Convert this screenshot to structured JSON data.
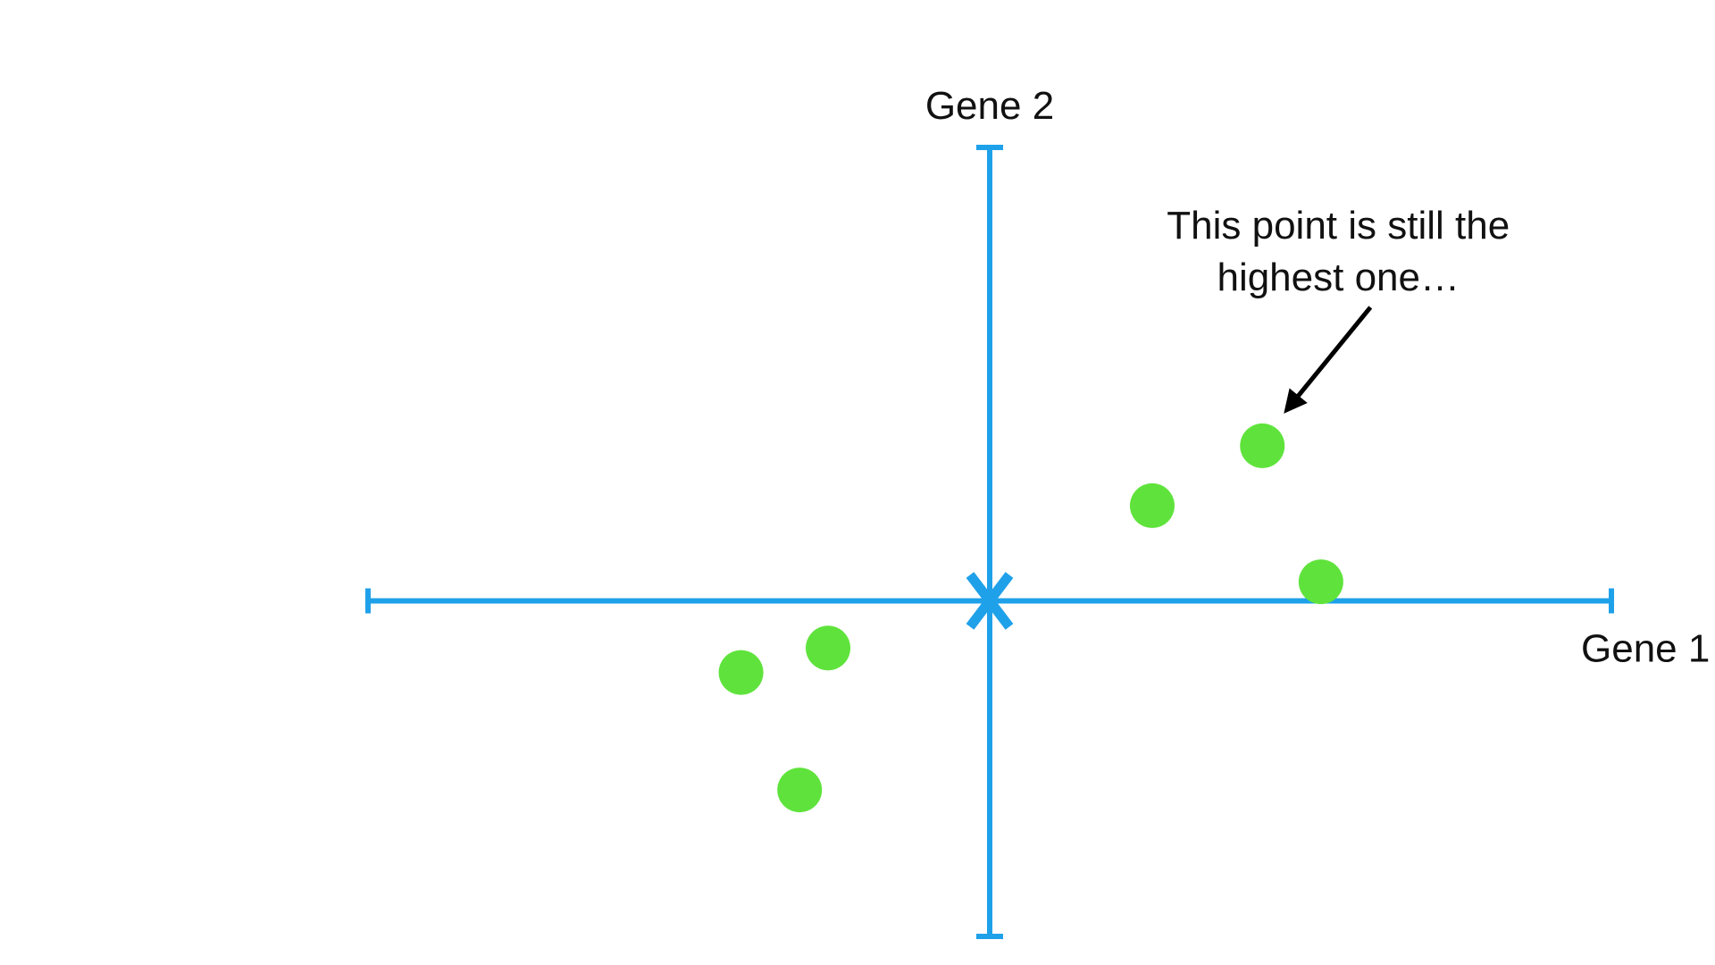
{
  "chart_data": {
    "type": "scatter",
    "title": "",
    "xlabel": "Gene 1",
    "ylabel": "Gene 2",
    "xlim": [
      -7,
      7
    ],
    "ylim": [
      -7.4,
      10
    ],
    "grid": false,
    "legend": "none",
    "center_marker": {
      "x": 0,
      "y": 0
    },
    "points": [
      {
        "x": 1.83,
        "y": 2.1
      },
      {
        "x": 3.07,
        "y": 3.42
      },
      {
        "x": 3.73,
        "y": 0.42
      },
      {
        "x": -2.8,
        "y": -1.58
      },
      {
        "x": -1.82,
        "y": -1.04
      },
      {
        "x": -2.14,
        "y": -4.17
      }
    ],
    "annotation": {
      "lines": [
        "This point is still the",
        "highest one…"
      ],
      "target_index": 1
    }
  },
  "colors": {
    "axis": "#1fa1ea",
    "point": "#5fe33c",
    "text": "#111111",
    "arrow": "#000000"
  }
}
